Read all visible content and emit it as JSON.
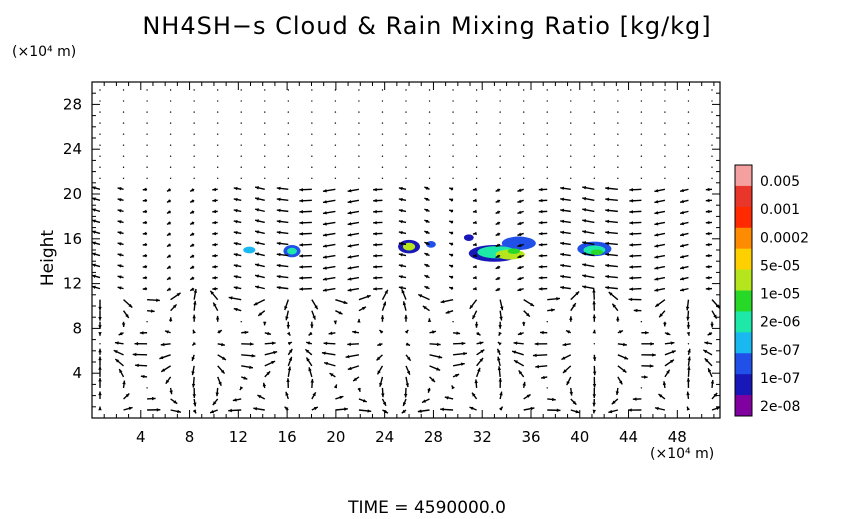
{
  "chart_data": {
    "type": "heatmap",
    "title": "NH4SH−s Cloud & Rain Mixing Ratio [kg/kg]",
    "ylabel": "Height",
    "x_unit": "(×10⁴ m)",
    "y_unit": "(×10⁴ m)",
    "footer": "TIME  =  4590000.0",
    "xlim": [
      0,
      51.5
    ],
    "ylim": [
      0,
      30
    ],
    "x_ticks": [
      4,
      8,
      12,
      16,
      20,
      24,
      28,
      32,
      36,
      40,
      44,
      48
    ],
    "y_ticks": [
      4,
      8,
      12,
      16,
      20,
      24,
      28
    ],
    "colorbar": {
      "labels": [
        "0.005",
        "0.001",
        "0.0002",
        "5e-05",
        "1e-05",
        "2e-06",
        "5e-07",
        "1e-07",
        "2e-08"
      ],
      "colors": [
        "#f4a0a0",
        "#e8362a",
        "#ff2a00",
        "#ff8c00",
        "#ffd000",
        "#b5e61d",
        "#27d827",
        "#1de8a8",
        "#1ab8f0",
        "#2050e8",
        "#1818b8",
        "#8000a0"
      ]
    },
    "cloud_patches": [
      {
        "x": 12.9,
        "y": 15.0,
        "rx": 0.5,
        "ry": 0.3,
        "color": "#1ab8f0"
      },
      {
        "x": 16.4,
        "y": 14.9,
        "rx": 0.7,
        "ry": 0.55,
        "color": "#2050e8"
      },
      {
        "x": 16.4,
        "y": 14.9,
        "rx": 0.4,
        "ry": 0.3,
        "color": "#1de8a8"
      },
      {
        "x": 26.0,
        "y": 15.3,
        "rx": 0.9,
        "ry": 0.6,
        "color": "#1818b8"
      },
      {
        "x": 26.0,
        "y": 15.3,
        "rx": 0.5,
        "ry": 0.35,
        "color": "#b5e61d"
      },
      {
        "x": 27.8,
        "y": 15.5,
        "rx": 0.4,
        "ry": 0.3,
        "color": "#2050e8"
      },
      {
        "x": 30.9,
        "y": 16.1,
        "rx": 0.4,
        "ry": 0.3,
        "color": "#1818b8"
      },
      {
        "x": 33.0,
        "y": 14.7,
        "rx": 2.1,
        "ry": 0.75,
        "color": "#1818b8"
      },
      {
        "x": 35.0,
        "y": 15.6,
        "rx": 1.4,
        "ry": 0.6,
        "color": "#2050e8"
      },
      {
        "x": 33.2,
        "y": 14.8,
        "rx": 1.6,
        "ry": 0.55,
        "color": "#1de8a8"
      },
      {
        "x": 34.3,
        "y": 14.6,
        "rx": 1.2,
        "ry": 0.45,
        "color": "#b5e61d"
      },
      {
        "x": 34.6,
        "y": 14.9,
        "rx": 0.5,
        "ry": 0.25,
        "color": "#27d827"
      },
      {
        "x": 41.2,
        "y": 15.1,
        "rx": 1.4,
        "ry": 0.65,
        "color": "#2050e8"
      },
      {
        "x": 41.2,
        "y": 15.0,
        "rx": 0.9,
        "ry": 0.4,
        "color": "#1de8a8"
      },
      {
        "x": 41.4,
        "y": 14.8,
        "rx": 0.5,
        "ry": 0.25,
        "color": "#27d827"
      }
    ]
  }
}
